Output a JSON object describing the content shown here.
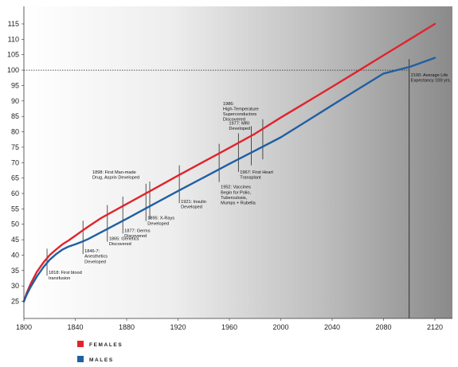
{
  "chart_data": {
    "type": "line",
    "title": "",
    "xlabel": "",
    "ylabel": "",
    "xlim": [
      1800,
      2125
    ],
    "ylim": [
      20,
      118
    ],
    "x_ticks": [
      "1800",
      "1840",
      "1880",
      "1920",
      "1960",
      "2000",
      "2040",
      "2080",
      "2120"
    ],
    "y_ticks": [
      "25",
      "30",
      "35",
      "40",
      "45",
      "50",
      "55",
      "60",
      "65",
      "70",
      "75",
      "80",
      "85",
      "90",
      "95",
      "100",
      "105",
      "110",
      "115"
    ],
    "series": [
      {
        "name": "FEMALES",
        "color": "#e0242b",
        "x": [
          1800,
          1802,
          1805,
          1810,
          1815,
          1820,
          1825,
          1830,
          1835,
          1840,
          1845,
          1850,
          1860,
          1880,
          1900,
          1920,
          1940,
          1960,
          1980,
          2000,
          2020,
          2040,
          2060,
          2080,
          2100,
          2120
        ],
        "y": [
          25,
          27.5,
          30.5,
          34.5,
          37.5,
          40,
          41.8,
          43.5,
          44.8,
          46.3,
          47.8,
          49.2,
          52,
          56.6,
          61.2,
          65.8,
          70.3,
          74.8,
          79.4,
          84.6,
          89.6,
          94.6,
          99.7,
          104.8,
          109.9,
          115
        ]
      },
      {
        "name": "MALES",
        "color": "#1f5fa3",
        "x": [
          1800,
          1802,
          1805,
          1810,
          1815,
          1820,
          1825,
          1830,
          1835,
          1840,
          1845,
          1850,
          1860,
          1880,
          1900,
          1920,
          1940,
          1960,
          1980,
          2000,
          2020,
          2040,
          2060,
          2080,
          2100,
          2120
        ],
        "y": [
          25,
          27,
          29.5,
          33,
          36,
          38.5,
          40.3,
          41.8,
          42.8,
          43.5,
          44.3,
          45.2,
          47.4,
          51.8,
          56.3,
          60.8,
          65.2,
          69.6,
          73.9,
          78.2,
          83.4,
          88.6,
          93.8,
          98.9,
          101,
          104
        ]
      }
    ],
    "reference_line": {
      "y": 100,
      "x_end": 2100
    },
    "annotations": [
      {
        "x": 1818,
        "lines": [
          "1818: First blood",
          "transfusion"
        ]
      },
      {
        "x": 1846,
        "lines": [
          "1846-7:",
          "Anesthetics",
          "Developed"
        ]
      },
      {
        "x": 1865,
        "lines": [
          "1865: Genetics",
          "Discovered"
        ]
      },
      {
        "x": 1877,
        "lines": [
          "1877: Germs",
          "Discovered"
        ]
      },
      {
        "x": 1895,
        "lines": [
          "1895: X-Rays",
          "Developed"
        ]
      },
      {
        "x": 1898,
        "lines": [
          "1898: First Man-made",
          "Drug, Asprin Developed"
        ]
      },
      {
        "x": 1921,
        "lines": [
          "1921: Insulin",
          "Developed"
        ]
      },
      {
        "x": 1952,
        "lines": [
          "1952: Vaccines",
          "Begin for Polio,",
          "Tuberculosis,",
          "Mumps + Rubella"
        ]
      },
      {
        "x": 1967,
        "lines": [
          "1967: First Heart",
          "Transplant"
        ]
      },
      {
        "x": 1977,
        "lines": [
          "1977: MRI",
          "Developed"
        ]
      },
      {
        "x": 1986,
        "lines": [
          "1986:",
          "High-Temperature",
          "Superconductors",
          "Discovered"
        ]
      },
      {
        "x": 2100,
        "lines": [
          "2100: Average Life",
          "Expectancy 100 yrs."
        ]
      }
    ],
    "legend": {
      "position": "bottom-left",
      "entries": [
        "FEMALES",
        "MALES"
      ]
    },
    "grid": false,
    "background": "gradient"
  }
}
